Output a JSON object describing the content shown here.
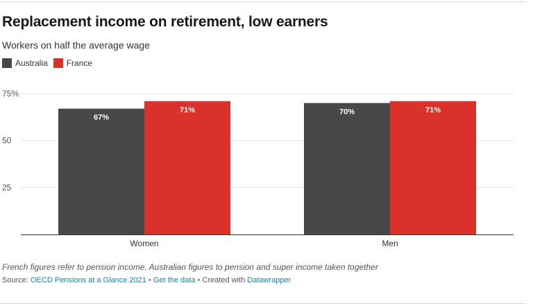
{
  "title": "Replacement income on retirement, low earners",
  "subtitle": "Workers on half the average wage",
  "legend": [
    {
      "label": "Australia",
      "color": "#474747"
    },
    {
      "label": "France",
      "color": "#d8322a"
    }
  ],
  "chart_data": {
    "type": "bar",
    "categories": [
      "Women",
      "Men"
    ],
    "series": [
      {
        "name": "Australia",
        "values": [
          67,
          70
        ],
        "labels": [
          "67%",
          "70%"
        ],
        "color": "#474747"
      },
      {
        "name": "France",
        "values": [
          71,
          71
        ],
        "labels": [
          "71%",
          "71%"
        ],
        "color": "#d8322a"
      }
    ],
    "yticks": [
      {
        "value": 75,
        "label": "75%"
      },
      {
        "value": 50,
        "label": "50"
      },
      {
        "value": 25,
        "label": "25"
      }
    ],
    "ylim": [
      0,
      75
    ],
    "xlabel": "",
    "ylabel": "",
    "grid": true
  },
  "footer": {
    "note": "French figures refer to pension income, Australian figures to pension and super income taken together",
    "source_prefix": "Source:",
    "source_link": "OECD Pensions at a Glance 2021",
    "separator": "•",
    "data_link": "Get the data",
    "created_text": "Created with",
    "tool_link": "Datawrapper"
  }
}
